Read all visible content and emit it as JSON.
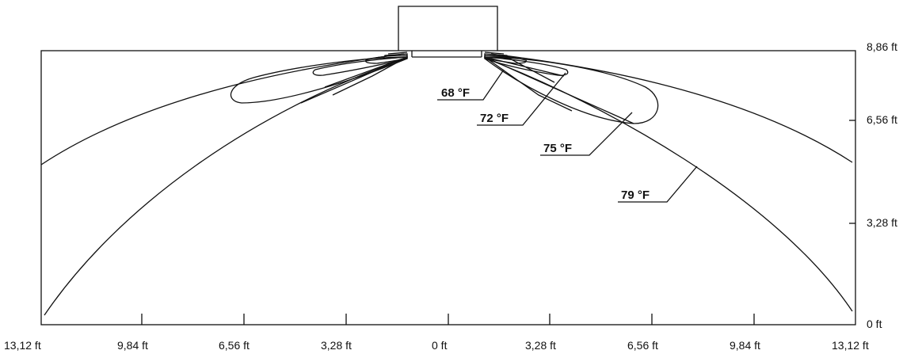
{
  "x_axis": {
    "ticks": [
      "13,12 ft",
      "9,84 ft",
      "6,56 ft",
      "3,28 ft",
      "0 ft",
      "3,28 ft",
      "6,56 ft",
      "9,84 ft",
      "13,12 ft"
    ]
  },
  "y_axis": {
    "ticks": [
      "0 ft",
      "3,28 ft",
      "6,56 ft",
      "8,86 ft"
    ]
  },
  "isotherms": [
    {
      "label": "68 °F"
    },
    {
      "label": "72 °F"
    },
    {
      "label": "75 °F"
    },
    {
      "label": "79 °F"
    }
  ]
}
